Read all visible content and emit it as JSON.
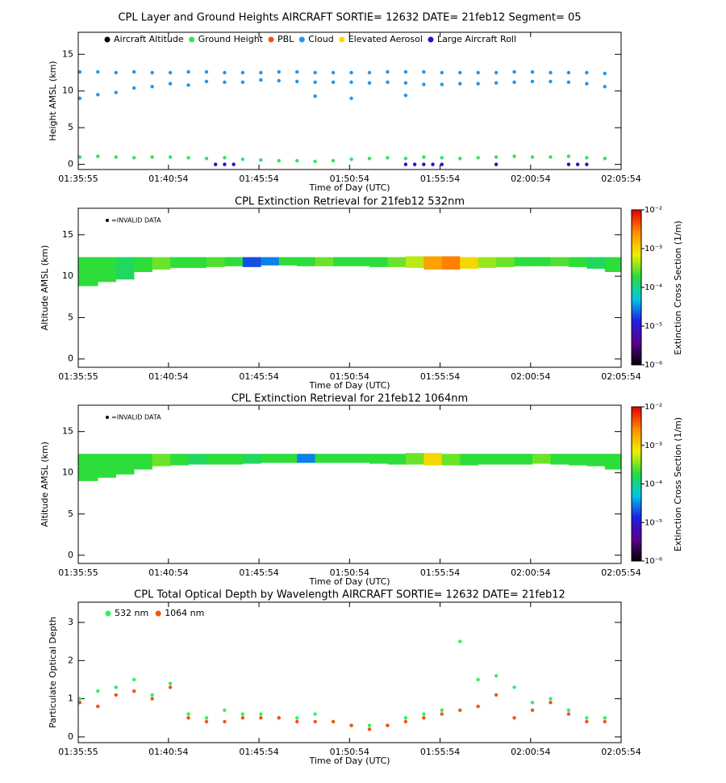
{
  "chart_data": [
    {
      "type": "scatter",
      "title": "CPL Layer and Ground Heights AIRCRAFT SORTIE= 12632 DATE= 21feb12 Segment= 05",
      "xlabel": "Time of Day (UTC)",
      "ylabel": "Height AMSL (km)",
      "xlim": [
        "01:35:55",
        "02:05:54"
      ],
      "xticks": [
        "01:35:55",
        "01:40:54",
        "01:45:54",
        "01:50:54",
        "01:55:54",
        "02:00:54",
        "02:05:54"
      ],
      "ylim": [
        -0.7,
        18
      ],
      "yticks": [
        0,
        5,
        10,
        15
      ],
      "series": [
        {
          "name": "Aircraft Altitude",
          "color": "#000000",
          "x": [],
          "values": []
        },
        {
          "name": "Ground Height",
          "color": "#33e066",
          "x": [
            "01:36:00",
            "01:37:00",
            "01:38:00",
            "01:39:00",
            "01:40:00",
            "01:41:00",
            "01:42:00",
            "01:43:00",
            "01:44:00",
            "01:45:00",
            "01:46:00",
            "01:47:00",
            "01:48:00",
            "01:49:00",
            "01:50:00",
            "01:51:00",
            "01:52:00",
            "01:53:00",
            "01:54:00",
            "01:55:00",
            "01:56:00",
            "01:57:00",
            "01:58:00",
            "01:59:00",
            "02:00:00",
            "02:01:00",
            "02:02:00",
            "02:03:00",
            "02:04:00",
            "02:05:00"
          ],
          "values": [
            1.0,
            1.1,
            1.0,
            0.9,
            1.0,
            1.0,
            0.9,
            0.8,
            0.9,
            0.7,
            0.6,
            0.5,
            0.5,
            0.4,
            0.5,
            0.7,
            0.8,
            0.9,
            0.8,
            1.0,
            0.9,
            0.8,
            0.9,
            1.0,
            1.1,
            1.0,
            1.0,
            1.1,
            0.9,
            0.8
          ]
        },
        {
          "name": "PBL",
          "color": "#ee5511",
          "x": [],
          "values": []
        },
        {
          "name": "Cloud",
          "color": "#1e96f0",
          "x": [
            "01:36:00",
            "01:37:00",
            "01:38:00",
            "01:39:00",
            "01:40:00",
            "01:41:00",
            "01:42:00",
            "01:43:00",
            "01:44:00",
            "01:45:00",
            "01:46:00",
            "01:47:00",
            "01:48:00",
            "01:49:00",
            "01:50:00",
            "01:51:00",
            "01:52:00",
            "01:53:00",
            "01:54:00",
            "01:55:00",
            "01:56:00",
            "01:57:00",
            "01:58:00",
            "01:59:00",
            "02:00:00",
            "02:01:00",
            "02:02:00",
            "02:03:00",
            "02:04:00",
            "02:05:00",
            "01:36:00",
            "01:37:00",
            "01:38:00",
            "01:39:00",
            "01:40:00",
            "01:41:00",
            "01:42:00",
            "01:43:00",
            "01:44:00",
            "01:45:00",
            "01:46:00",
            "01:47:00",
            "01:48:00",
            "01:49:00",
            "01:50:00",
            "01:51:00",
            "01:52:00",
            "01:53:00",
            "01:54:00",
            "01:55:00",
            "01:56:00",
            "01:57:00",
            "01:58:00",
            "01:59:00",
            "02:00:00",
            "02:01:00",
            "02:02:00",
            "02:03:00",
            "02:04:00",
            "02:05:00",
            "01:49:00",
            "01:51:00",
            "01:54:00"
          ],
          "values": [
            12.6,
            12.6,
            12.5,
            12.6,
            12.5,
            12.5,
            12.6,
            12.6,
            12.5,
            12.5,
            12.5,
            12.6,
            12.6,
            12.5,
            12.5,
            12.5,
            12.5,
            12.6,
            12.6,
            12.6,
            12.5,
            12.5,
            12.5,
            12.5,
            12.6,
            12.6,
            12.5,
            12.5,
            12.5,
            12.4,
            9.0,
            9.5,
            9.8,
            10.4,
            10.6,
            11.0,
            10.8,
            11.3,
            11.2,
            11.2,
            11.5,
            11.4,
            11.3,
            11.2,
            11.2,
            11.2,
            11.1,
            11.2,
            11.1,
            10.9,
            10.9,
            11.0,
            11.0,
            11.1,
            11.2,
            11.3,
            11.3,
            11.2,
            11.0,
            10.6,
            9.3,
            9.0,
            9.4
          ]
        },
        {
          "name": "Elevated Aerosol",
          "color": "#ffd700",
          "x": [],
          "values": []
        },
        {
          "name": "Large Aircraft Roll",
          "color": "#2a0fc8",
          "x": [
            "01:43:30",
            "01:44:00",
            "01:44:30",
            "01:54:00",
            "01:54:30",
            "01:55:00",
            "01:55:30",
            "01:56:00",
            "01:59:00",
            "02:03:00",
            "02:03:30",
            "02:04:00"
          ],
          "values": [
            0,
            0,
            0,
            0,
            0,
            0,
            0,
            0,
            0,
            0,
            0,
            0
          ]
        }
      ]
    },
    {
      "type": "heatmap",
      "title": "CPL Extinction Retrieval for 21feb12      532nm",
      "xlabel": "Time of Day (UTC)",
      "ylabel": "Altitude AMSL (km)",
      "annotation": "=INVALID DATA",
      "colorbar_label": "Extinction Cross Section (1/m)",
      "xlim": [
        "01:35:55",
        "02:05:54"
      ],
      "xticks": [
        "01:35:55",
        "01:40:54",
        "01:45:54",
        "01:50:54",
        "01:55:54",
        "02:00:54",
        "02:05:54"
      ],
      "ylim": [
        -1,
        18.2
      ],
      "yticks": [
        0,
        5,
        10,
        15
      ],
      "zlim": [
        1e-06,
        0.01
      ],
      "zticks": [
        {
          "value": 1e-06,
          "label": "10⁻⁶"
        },
        {
          "value": 1e-05,
          "label": "10⁻⁵"
        },
        {
          "value": 0.0001,
          "label": "10⁻⁴"
        },
        {
          "value": 0.001,
          "label": "10⁻³"
        },
        {
          "value": 0.01,
          "label": "10⁻²"
        }
      ],
      "x": [
        "01:35:55",
        "01:37:00",
        "01:38:00",
        "01:39:00",
        "01:40:00",
        "01:41:00",
        "01:42:00",
        "01:43:00",
        "01:44:00",
        "01:45:00",
        "01:46:00",
        "01:47:00",
        "01:48:00",
        "01:49:00",
        "01:50:00",
        "01:51:00",
        "01:52:00",
        "01:53:00",
        "01:54:00",
        "01:55:00",
        "01:56:00",
        "01:57:00",
        "01:58:00",
        "01:59:00",
        "02:00:00",
        "02:01:00",
        "02:02:00",
        "02:03:00",
        "02:04:00",
        "02:05:00"
      ],
      "base": [
        8.8,
        9.3,
        9.6,
        10.5,
        10.8,
        11.0,
        11.0,
        11.1,
        11.2,
        11.1,
        11.3,
        11.3,
        11.2,
        11.2,
        11.2,
        11.2,
        11.1,
        11.1,
        11.0,
        10.8,
        10.8,
        10.9,
        11.0,
        11.1,
        11.2,
        11.2,
        11.2,
        11.1,
        10.9,
        10.5
      ],
      "top": [
        12.3,
        12.3,
        12.3,
        12.3,
        12.3,
        12.3,
        12.3,
        12.3,
        12.3,
        12.3,
        12.3,
        12.3,
        12.3,
        12.3,
        12.3,
        12.3,
        12.3,
        12.3,
        12.4,
        12.4,
        12.4,
        12.3,
        12.3,
        12.3,
        12.3,
        12.3,
        12.3,
        12.3,
        12.3,
        12.3
      ],
      "values": [
        0.0002,
        0.0002,
        0.00015,
        0.0002,
        0.0003,
        0.0002,
        0.0002,
        0.00025,
        0.0002,
        2e-05,
        3e-05,
        0.0002,
        0.0002,
        0.0003,
        0.0002,
        0.0002,
        0.0002,
        0.0003,
        0.0005,
        0.002,
        0.003,
        0.001,
        0.0004,
        0.0003,
        0.0002,
        0.0002,
        0.00025,
        0.0002,
        0.00015,
        0.0002
      ]
    },
    {
      "type": "heatmap",
      "title": "CPL Extinction Retrieval for 21feb12     1064nm",
      "xlabel": "Time of Day (UTC)",
      "ylabel": "Altitude AMSL (km)",
      "annotation": "=INVALID DATA",
      "colorbar_label": "Extinction Cross Section (1/m)",
      "xlim": [
        "01:35:55",
        "02:05:54"
      ],
      "xticks": [
        "01:35:55",
        "01:40:54",
        "01:45:54",
        "01:50:54",
        "01:55:54",
        "02:00:54",
        "02:05:54"
      ],
      "ylim": [
        -1,
        18.2
      ],
      "yticks": [
        0,
        5,
        10,
        15
      ],
      "zlim": [
        1e-06,
        0.01
      ],
      "zticks": [
        {
          "value": 1e-06,
          "label": "10⁻⁶"
        },
        {
          "value": 1e-05,
          "label": "10⁻⁵"
        },
        {
          "value": 0.0001,
          "label": "10⁻⁴"
        },
        {
          "value": 0.001,
          "label": "10⁻³"
        },
        {
          "value": 0.01,
          "label": "10⁻²"
        }
      ],
      "x": [
        "01:35:55",
        "01:37:00",
        "01:38:00",
        "01:39:00",
        "01:40:00",
        "01:41:00",
        "01:42:00",
        "01:43:00",
        "01:44:00",
        "01:45:00",
        "01:46:00",
        "01:47:00",
        "01:48:00",
        "01:49:00",
        "01:50:00",
        "01:51:00",
        "01:52:00",
        "01:53:00",
        "01:54:00",
        "01:55:00",
        "01:56:00",
        "01:57:00",
        "01:58:00",
        "01:59:00",
        "02:00:00",
        "02:01:00",
        "02:02:00",
        "02:03:00",
        "02:04:00",
        "02:05:00"
      ],
      "base": [
        9.0,
        9.4,
        9.8,
        10.4,
        10.8,
        10.9,
        11.0,
        11.0,
        11.0,
        11.1,
        11.2,
        11.2,
        11.2,
        11.2,
        11.2,
        11.2,
        11.1,
        11.0,
        11.0,
        10.9,
        10.9,
        10.9,
        11.0,
        11.0,
        11.0,
        11.1,
        11.0,
        10.9,
        10.8,
        10.4
      ],
      "top": [
        12.3,
        12.3,
        12.3,
        12.3,
        12.3,
        12.3,
        12.3,
        12.3,
        12.3,
        12.3,
        12.3,
        12.3,
        12.3,
        12.3,
        12.3,
        12.3,
        12.3,
        12.3,
        12.4,
        12.4,
        12.3,
        12.3,
        12.3,
        12.3,
        12.3,
        12.3,
        12.3,
        12.3,
        12.3,
        12.3
      ],
      "values": [
        0.0002,
        0.0002,
        0.0002,
        0.0002,
        0.0003,
        0.0002,
        0.00015,
        0.0002,
        0.0002,
        0.00015,
        0.0002,
        0.0002,
        3e-05,
        0.0002,
        0.0002,
        0.0002,
        0.0002,
        0.0002,
        0.0003,
        0.001,
        0.0003,
        0.0002,
        0.0002,
        0.0002,
        0.0002,
        0.0003,
        0.0002,
        0.0002,
        0.0002,
        0.0002
      ]
    },
    {
      "type": "scatter",
      "title": "CPL Total Optical Depth by Wavelength AIRCRAFT SORTIE= 12632 DATE= 21feb12",
      "xlabel": "Time of Day (UTC)",
      "ylabel": "Particulate Optical Depth",
      "xlim": [
        "01:35:55",
        "02:05:54"
      ],
      "xticks": [
        "01:35:55",
        "01:40:54",
        "01:45:54",
        "01:50:54",
        "01:55:54",
        "02:00:54",
        "02:05:54"
      ],
      "ylim": [
        -0.15,
        3.53
      ],
      "yticks": [
        0,
        1,
        2,
        3
      ],
      "series": [
        {
          "name": "532 nm",
          "color": "#33ee66",
          "x": [
            "01:36:00",
            "01:37:00",
            "01:38:00",
            "01:39:00",
            "01:40:00",
            "01:41:00",
            "01:42:00",
            "01:43:00",
            "01:44:00",
            "01:45:00",
            "01:46:00",
            "01:47:00",
            "01:48:00",
            "01:49:00",
            "01:50:00",
            "01:51:00",
            "01:52:00",
            "01:53:00",
            "01:54:00",
            "01:55:00",
            "01:56:00",
            "01:57:00",
            "01:58:00",
            "01:59:00",
            "02:00:00",
            "02:01:00",
            "02:02:00",
            "02:03:00",
            "02:04:00",
            "02:05:00"
          ],
          "values": [
            1.0,
            1.2,
            1.3,
            1.5,
            1.1,
            1.4,
            0.6,
            0.5,
            0.7,
            0.6,
            0.6,
            0.5,
            0.5,
            0.6,
            0.4,
            0.3,
            0.3,
            0.3,
            0.5,
            0.6,
            0.7,
            2.5,
            1.5,
            1.6,
            1.3,
            0.9,
            1.0,
            0.7,
            0.5,
            0.5
          ]
        },
        {
          "name": "1064 nm",
          "color": "#ee5511",
          "x": [
            "01:36:00",
            "01:37:00",
            "01:38:00",
            "01:39:00",
            "01:40:00",
            "01:41:00",
            "01:42:00",
            "01:43:00",
            "01:44:00",
            "01:45:00",
            "01:46:00",
            "01:47:00",
            "01:48:00",
            "01:49:00",
            "01:50:00",
            "01:51:00",
            "01:52:00",
            "01:53:00",
            "01:54:00",
            "01:55:00",
            "01:56:00",
            "01:57:00",
            "01:58:00",
            "01:59:00",
            "02:00:00",
            "02:01:00",
            "02:02:00",
            "02:03:00",
            "02:04:00",
            "02:05:00"
          ],
          "values": [
            0.9,
            0.8,
            1.1,
            1.2,
            1.0,
            1.3,
            0.5,
            0.4,
            0.4,
            0.5,
            0.5,
            0.5,
            0.4,
            0.4,
            0.4,
            0.3,
            0.2,
            0.3,
            0.4,
            0.5,
            0.6,
            0.7,
            0.8,
            1.1,
            0.5,
            0.7,
            0.9,
            0.6,
            0.4,
            0.4
          ]
        }
      ]
    }
  ]
}
